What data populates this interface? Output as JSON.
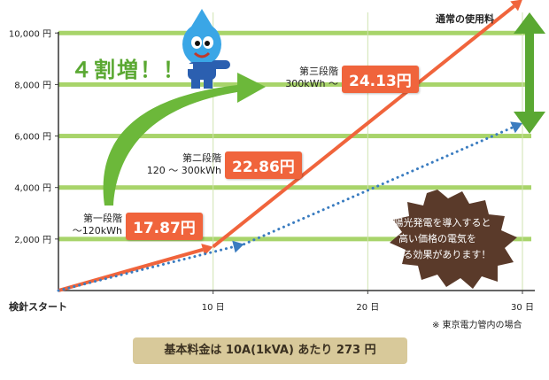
{
  "chart_data": {
    "type": "line",
    "title": "",
    "xlabel": "",
    "ylabel": "",
    "x_ticks": [
      "検針スタート",
      "10 日",
      "20 日",
      "30 日"
    ],
    "y_ticks": [
      "2,000 円",
      "4,000 円",
      "6,000 円",
      "8,000 円",
      "10,000 円"
    ],
    "ylim": [
      0,
      10800
    ],
    "xlim": [
      0,
      30
    ],
    "grid": true,
    "series": [
      {
        "name": "通常の使用料",
        "style": "solid",
        "color": "#f0643c",
        "x": [
          0,
          10,
          30
        ],
        "y": [
          0,
          1700,
          11300
        ]
      },
      {
        "name": "",
        "style": "dotted",
        "color": "#3a7cc0",
        "x": [
          0,
          12,
          30
        ],
        "y": [
          0,
          1800,
          6500
        ]
      }
    ],
    "annotations": {
      "tiers": [
        {
          "name": "第一段階",
          "range": "～120kWh",
          "price": "17.87円"
        },
        {
          "name": "第二段階",
          "range": "120 ～ 300kWh",
          "price": "22.86円"
        },
        {
          "name": "第三段階",
          "range": "300kWh ～",
          "price": "24.13円"
        }
      ],
      "normal_label": "通常の使用料",
      "increase": "４割増！！",
      "solar_message": [
        "太陽光発電を導入すると",
        "高い価格の電気を",
        "抑える効果があります！"
      ],
      "note": "※ 東京電力管内の場合",
      "base_fee": "基本料金は 10A(1kVA) あたり 273 円"
    },
    "colors": {
      "grid": "#a8d46a",
      "orange": "#f0643c",
      "blue": "#3a7cc0",
      "green": "#5aa832",
      "burst": "#5a3a2a"
    }
  }
}
